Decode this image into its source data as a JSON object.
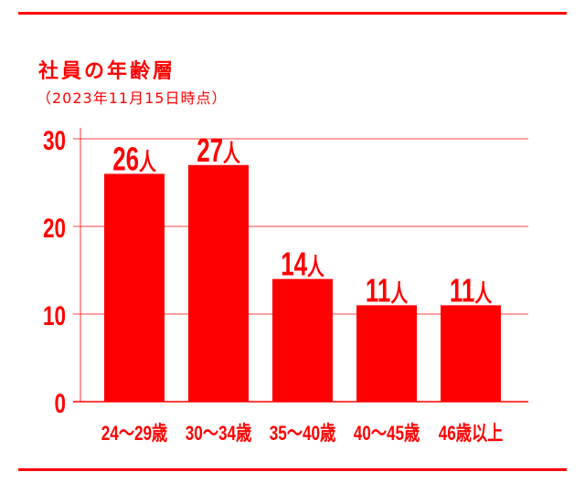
{
  "chart_data": {
    "type": "bar",
    "title": "社員の年齢層",
    "subtitle": "（2023年11月15日時点）",
    "categories": [
      "24～29歳",
      "30～34歳",
      "35～40歳",
      "40～45歳",
      "46歳以上"
    ],
    "values": [
      26,
      27,
      14,
      11,
      11
    ],
    "data_label_unit": "人",
    "yticks": [
      0,
      10,
      20,
      30
    ],
    "ylim": [
      0,
      30
    ],
    "grid": true,
    "color": "#ff0000"
  }
}
